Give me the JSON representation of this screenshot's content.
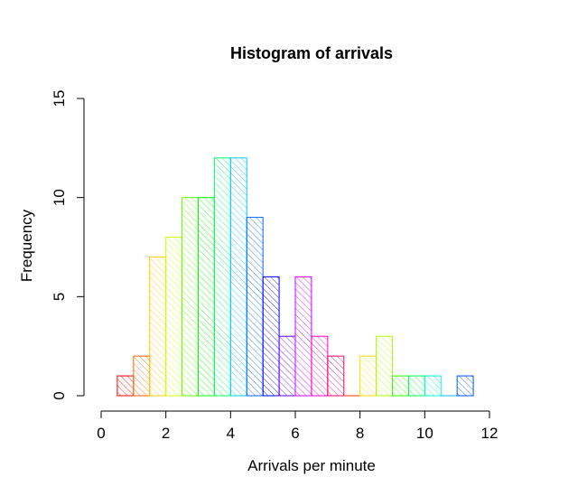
{
  "chart_data": {
    "type": "bar",
    "title": "Histogram of arrivals",
    "xlabel": "Arrivals per minute",
    "ylabel": "Frequency",
    "bin_width": 0.5,
    "bins": [
      {
        "start": 0.5,
        "end": 1.0,
        "count": 1,
        "color": "#FF0000"
      },
      {
        "start": 1.0,
        "end": 1.5,
        "count": 2,
        "color": "#FF6600"
      },
      {
        "start": 1.5,
        "end": 2.0,
        "count": 7,
        "color": "#FFCC00"
      },
      {
        "start": 2.0,
        "end": 2.5,
        "count": 8,
        "color": "#CCFF00"
      },
      {
        "start": 2.5,
        "end": 3.0,
        "count": 10,
        "color": "#66FF00"
      },
      {
        "start": 3.0,
        "end": 3.5,
        "count": 10,
        "color": "#00FF00"
      },
      {
        "start": 3.5,
        "end": 4.0,
        "count": 12,
        "color": "#00FF66"
      },
      {
        "start": 4.0,
        "end": 4.5,
        "count": 12,
        "color": "#00CCFF"
      },
      {
        "start": 4.5,
        "end": 5.0,
        "count": 9,
        "color": "#0066FF"
      },
      {
        "start": 5.0,
        "end": 5.5,
        "count": 6,
        "color": "#0000FF"
      },
      {
        "start": 5.5,
        "end": 6.0,
        "count": 3,
        "color": "#6600FF"
      },
      {
        "start": 6.0,
        "end": 6.5,
        "count": 6,
        "color": "#CC00FF"
      },
      {
        "start": 6.5,
        "end": 7.0,
        "count": 3,
        "color": "#FF00CC"
      },
      {
        "start": 7.0,
        "end": 7.5,
        "count": 2,
        "color": "#FF0066"
      },
      {
        "start": 7.5,
        "end": 8.0,
        "count": 0,
        "color": "#FF3300"
      },
      {
        "start": 8.0,
        "end": 8.5,
        "count": 2,
        "color": "#FFDD00"
      },
      {
        "start": 8.5,
        "end": 9.0,
        "count": 3,
        "color": "#AAFF00"
      },
      {
        "start": 9.0,
        "end": 9.5,
        "count": 1,
        "color": "#33FF00"
      },
      {
        "start": 9.5,
        "end": 10.0,
        "count": 1,
        "color": "#00FF55"
      },
      {
        "start": 10.0,
        "end": 10.5,
        "count": 1,
        "color": "#00FFCC"
      },
      {
        "start": 10.5,
        "end": 11.0,
        "count": 0,
        "color": "#00BBFF"
      },
      {
        "start": 11.0,
        "end": 11.5,
        "count": 1,
        "color": "#0055FF"
      }
    ],
    "xlim": [
      0,
      12
    ],
    "ylim": [
      0,
      15
    ],
    "x_ticks": [
      "0",
      "2",
      "4",
      "6",
      "8",
      "10",
      "12"
    ],
    "y_ticks": [
      "0",
      "5",
      "10",
      "15"
    ],
    "fill": "diagonal-hatch",
    "grid": false
  }
}
